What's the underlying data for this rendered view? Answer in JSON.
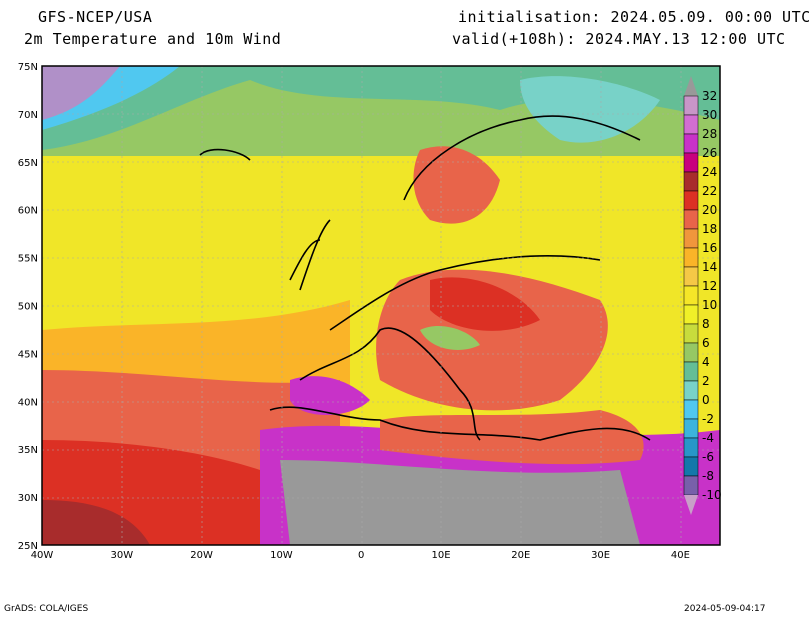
{
  "header": {
    "model": "GFS-NCEP/USA",
    "product": "2m Temperature and 10m Wind",
    "init": "initialisation: 2024.05.09. 00:00 UTC",
    "valid": "valid(+108h): 2024.MAY.13 12:00 UTC"
  },
  "axes": {
    "lat_labels": [
      "75N",
      "70N",
      "65N",
      "60N",
      "55N",
      "50N",
      "45N",
      "40N",
      "35N",
      "30N",
      "25N"
    ],
    "lon_labels": [
      "40W",
      "30W",
      "20W",
      "10W",
      "0",
      "10E",
      "20E",
      "30E",
      "40E"
    ]
  },
  "legend": {
    "labels": [
      "32",
      "30",
      "28",
      "26",
      "24",
      "22",
      "20",
      "18",
      "16",
      "14",
      "12",
      "10",
      "8",
      "6",
      "4",
      "2",
      "0",
      "-2",
      "-4",
      "-6",
      "-8",
      "-10"
    ],
    "colors": [
      "#c896c8",
      "#d26ed2",
      "#c832c8",
      "#c8007e",
      "#a82c2c",
      "#dc3024",
      "#e8644a",
      "#f0963c",
      "#fab428",
      "#f5c846",
      "#f5e628",
      "#f0f028",
      "#c8dc3c",
      "#96c864",
      "#64be96",
      "#78d2c8",
      "#50c8f0",
      "#3cb4dc",
      "#2896c8",
      "#1478aa",
      "#7860aa"
    ]
  },
  "footer": {
    "left": "GrADS: COLA/IGES",
    "right": "2024-05-09-04:17"
  }
}
